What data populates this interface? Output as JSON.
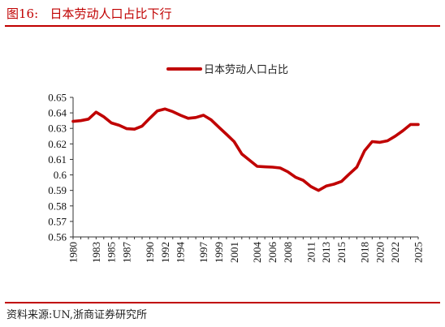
{
  "header": {
    "figure_label": "图16:",
    "title": "日本劳动人口占比下行"
  },
  "footer": {
    "source": "资料来源:UN,浙商证券研究所"
  },
  "colors": {
    "accent": "#c00000",
    "series": "#c00000"
  },
  "chart_data": {
    "type": "line",
    "title": "",
    "xlabel": "",
    "ylabel": "",
    "ylim": [
      0.56,
      0.65
    ],
    "yticks": [
      "0.56",
      "0.57",
      "0.58",
      "0.59",
      "0.6",
      "0.61",
      "0.62",
      "0.63",
      "0.64",
      "0.65"
    ],
    "xticks": [
      "1980",
      "1983",
      "1985",
      "1987",
      "1990",
      "1992",
      "1994",
      "1997",
      "1999",
      "2001",
      "2004",
      "2006",
      "2008",
      "2011",
      "2013",
      "2015",
      "2018",
      "2020",
      "2022",
      "2025"
    ],
    "legend_position": "top-center",
    "x": [
      1980,
      1981,
      1982,
      1983,
      1984,
      1985,
      1986,
      1987,
      1988,
      1989,
      1990,
      1991,
      1992,
      1993,
      1994,
      1995,
      1996,
      1997,
      1998,
      1999,
      2000,
      2001,
      2002,
      2003,
      2004,
      2005,
      2006,
      2007,
      2008,
      2009,
      2010,
      2011,
      2012,
      2013,
      2014,
      2015,
      2016,
      2017,
      2018,
      2019,
      2020,
      2021,
      2022,
      2023,
      2024,
      2025
    ],
    "series": [
      {
        "name": "日本劳动人口占比",
        "values": [
          0.6345,
          0.635,
          0.636,
          0.6405,
          0.6375,
          0.6335,
          0.632,
          0.6298,
          0.6295,
          0.6315,
          0.6365,
          0.6413,
          0.6425,
          0.6408,
          0.6385,
          0.6365,
          0.637,
          0.6385,
          0.6355,
          0.6308,
          0.6262,
          0.6215,
          0.6135,
          0.6095,
          0.6055,
          0.6052,
          0.605,
          0.6045,
          0.602,
          0.5985,
          0.5965,
          0.5925,
          0.59,
          0.5928,
          0.594,
          0.5958,
          0.6005,
          0.605,
          0.6155,
          0.6215,
          0.621,
          0.622,
          0.625,
          0.6285,
          0.6325,
          0.6325
        ]
      }
    ]
  }
}
